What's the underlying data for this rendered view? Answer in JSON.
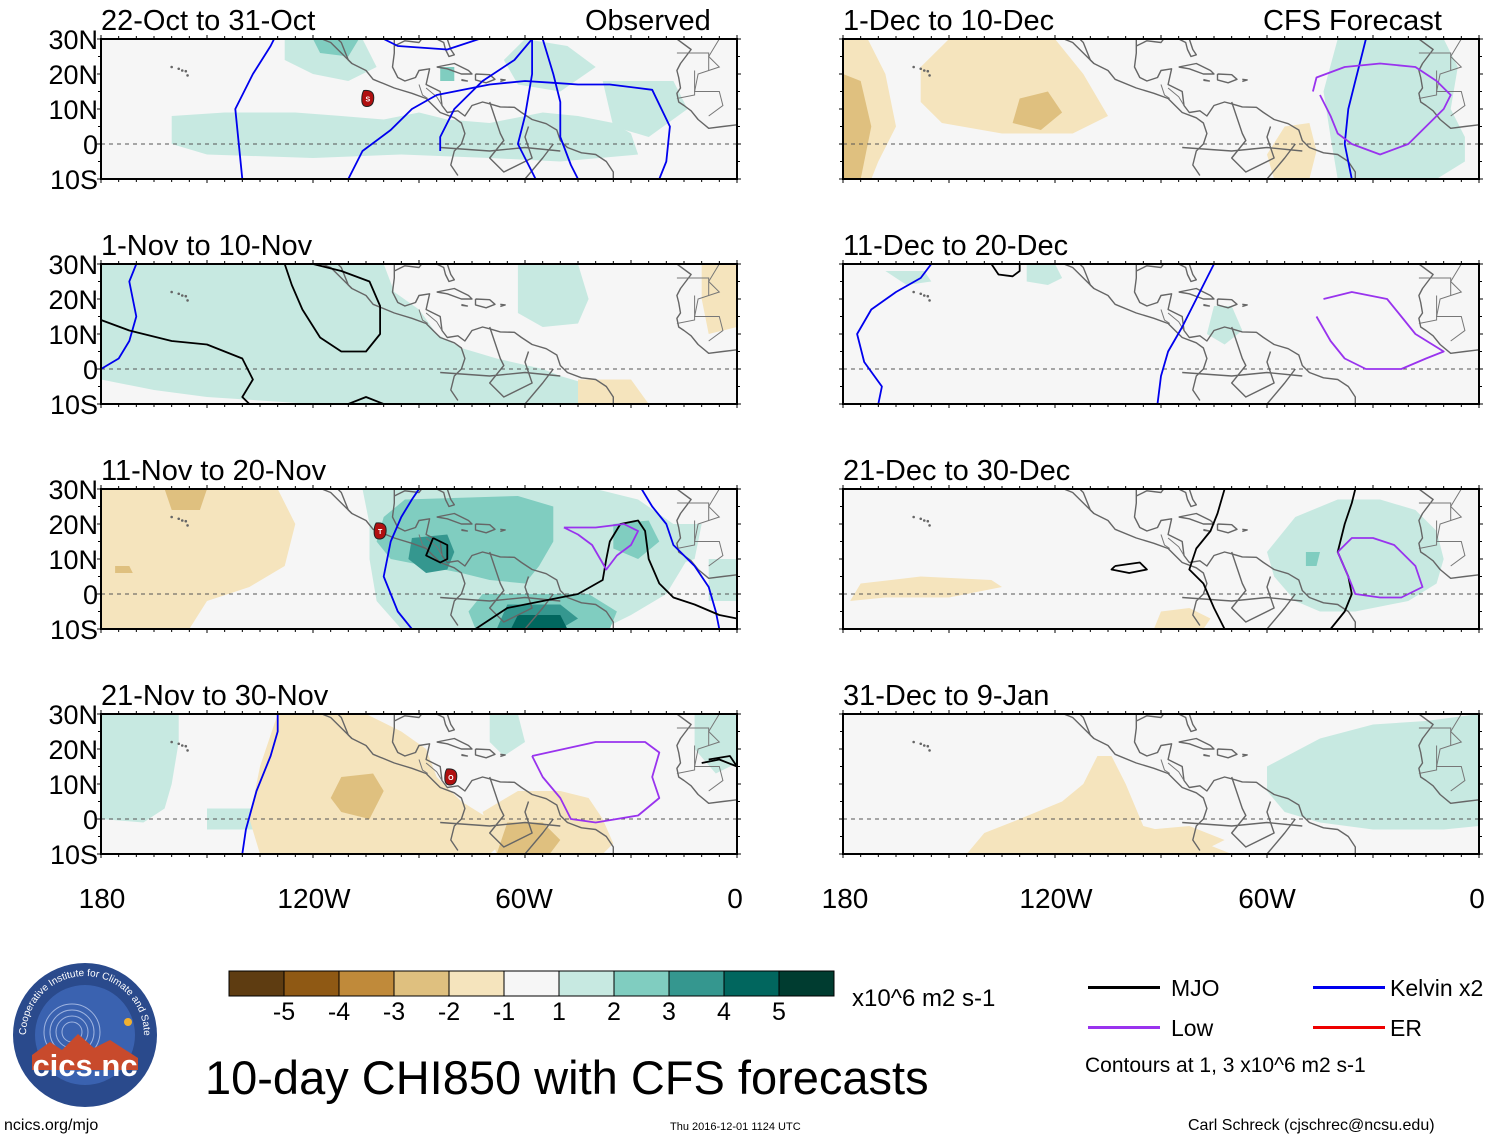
{
  "panels": [
    {
      "period": "22-Oct to 31-Oct",
      "tag": "Observed",
      "storms": [
        {
          "label": "S"
        }
      ]
    },
    {
      "period": "1-Dec to 10-Dec",
      "tag": "CFS Forecast",
      "storms": []
    },
    {
      "period": "1-Nov to 10-Nov",
      "tag": "",
      "storms": []
    },
    {
      "period": "11-Dec to 20-Dec",
      "tag": "",
      "storms": []
    },
    {
      "period": "11-Nov to 20-Nov",
      "tag": "",
      "storms": [
        {
          "label": "T"
        }
      ]
    },
    {
      "period": "21-Dec to 30-Dec",
      "tag": "",
      "storms": []
    },
    {
      "period": "21-Nov to 30-Nov",
      "tag": "",
      "storms": [
        {
          "label": "O"
        }
      ]
    },
    {
      "period": "31-Dec to 9-Jan",
      "tag": "",
      "storms": []
    }
  ],
  "lat_labels": [
    "30N",
    "20N",
    "10N",
    "0",
    "10S"
  ],
  "lon_labels": [
    "180",
    "120W",
    "60W",
    "0"
  ],
  "colorbar": {
    "colors": [
      "#5e3c11",
      "#8f5914",
      "#c08a3a",
      "#dfc07f",
      "#f5e4bd",
      "#f6f6f6",
      "#c7e9e1",
      "#80cdc0",
      "#35978f",
      "#01665e",
      "#003c30"
    ],
    "labels": [
      "-5",
      "-4",
      "-3",
      "-2",
      "-1",
      "1",
      "2",
      "3",
      "4",
      "5"
    ],
    "units": "x10^6 m2 s-1"
  },
  "legend": {
    "items": [
      {
        "label": "MJO",
        "color": "#000000"
      },
      {
        "label": "Kelvin x2",
        "color": "#0000ee"
      },
      {
        "label": "Low",
        "color": "#9933ee"
      },
      {
        "label": "ER",
        "color": "#ee0000"
      }
    ],
    "note": "Contours at 1, 3 x10^6 m2 s-1"
  },
  "title": "10-day CHI850 with CFS forecasts",
  "logo_text": "cics.nc",
  "logo_ring": "Cooperative Institute for Climate and Satellites",
  "footer": {
    "left": "ncics.org/mjo",
    "center": "Thu 2016-12-01 1124 UTC",
    "right": "Carl Schreck (cjschrec@ncsu.edu)"
  }
}
